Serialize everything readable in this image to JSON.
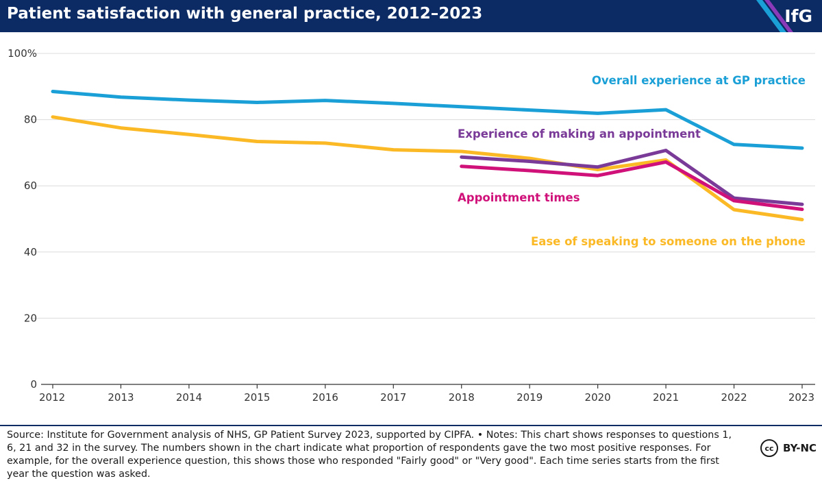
{
  "header": {
    "title": "Patient satisfaction with general practice, 2012–2023",
    "logo": "IfG"
  },
  "footer": {
    "source": "Source: Institute for Government analysis of NHS, GP Patient Survey 2023, supported by CIPFA. • Notes: This chart shows responses to questions 1, 6, 21 and 32 in the survey. The numbers shown in the chart indicate what proportion of respondents gave the two most positive responses. For example, for the overall experience question, this shows those who responded \"Fairly good\" or \"Very good\". Each time series starts from the first year the question was asked.",
    "license_icon": "cc",
    "license_text": "BY-NC"
  },
  "chart_data": {
    "type": "line",
    "title": "Patient satisfaction with general practice, 2012–2023",
    "x": [
      2012,
      2013,
      2014,
      2015,
      2016,
      2017,
      2018,
      2019,
      2020,
      2021,
      2022,
      2023
    ],
    "ylim": [
      0,
      100
    ],
    "yticks": [
      0,
      20,
      40,
      60,
      80,
      100
    ],
    "ytick_labels": [
      "0",
      "20",
      "40",
      "60",
      "80",
      "100%"
    ],
    "xtick_labels": [
      "2012",
      "2013",
      "2014",
      "2015",
      "2016",
      "2017",
      "2018",
      "2019",
      "2020",
      "2021",
      "2022",
      "2023"
    ],
    "grid": true,
    "series": [
      {
        "name": "Overall experience at GP practice",
        "color": "#1aa0d6",
        "values": [
          88.5,
          86.8,
          85.9,
          85.2,
          85.8,
          84.9,
          83.9,
          82.9,
          81.9,
          83.0,
          72.5,
          71.4
        ]
      },
      {
        "name": "Ease of speaking to someone on the phone",
        "color": "#fbb926",
        "values": [
          80.8,
          77.5,
          75.5,
          73.4,
          72.9,
          70.9,
          70.4,
          68.3,
          64.9,
          67.8,
          52.8,
          49.8
        ]
      },
      {
        "name": "Experience of making an appointment",
        "color": "#7a3a98",
        "values": [
          null,
          null,
          null,
          null,
          null,
          null,
          68.7,
          67.4,
          65.7,
          70.7,
          56.3,
          54.4
        ]
      },
      {
        "name": "Appointment times",
        "color": "#d0117a",
        "values": [
          null,
          null,
          null,
          null,
          null,
          null,
          65.9,
          64.6,
          63.1,
          67.2,
          55.5,
          52.9
        ]
      }
    ]
  }
}
